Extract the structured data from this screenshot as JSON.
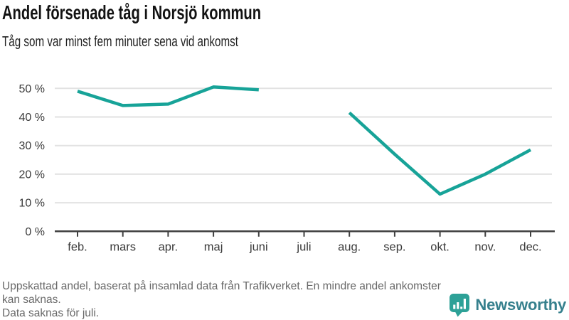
{
  "header": {
    "title": "Andel försenade tåg i Norsjö kommun",
    "subtitle": "Tåg som var minst fem minuter sena vid ankomst"
  },
  "chart_data": {
    "type": "line",
    "title": "Andel försenade tåg i Norsjö kommun",
    "subtitle": "Tåg som var minst fem minuter sena vid ankomst",
    "categories": [
      "feb.",
      "mars",
      "apr.",
      "maj",
      "juni",
      "juli",
      "aug.",
      "sep.",
      "okt.",
      "nov.",
      "dec."
    ],
    "values": [
      49,
      44,
      44.5,
      50.5,
      49.5,
      null,
      41.5,
      27,
      13,
      20,
      28.5
    ],
    "missing_category": "juli",
    "unit": "%",
    "y_ticks": [
      0,
      10,
      20,
      30,
      40,
      50
    ],
    "y_tick_suffix": " %",
    "ylim": [
      0,
      50
    ],
    "grid": true,
    "legend": "none",
    "line_color": "#17a398",
    "grid_color": "#e2e2e2",
    "axis_color": "#404040",
    "axis_text_color": "#3a3a3a"
  },
  "footer": {
    "note1": "Uppskattad andel, baserat på insamlad data från Trafikverket. En mindre andel ankomster kan saknas.",
    "note2": "Data saknas för juli."
  },
  "brand": {
    "name": "Newsworthy",
    "icon": "newsworthy-chart-bubble-icon",
    "icon_color": "#2da197",
    "text_color": "#36808d"
  }
}
